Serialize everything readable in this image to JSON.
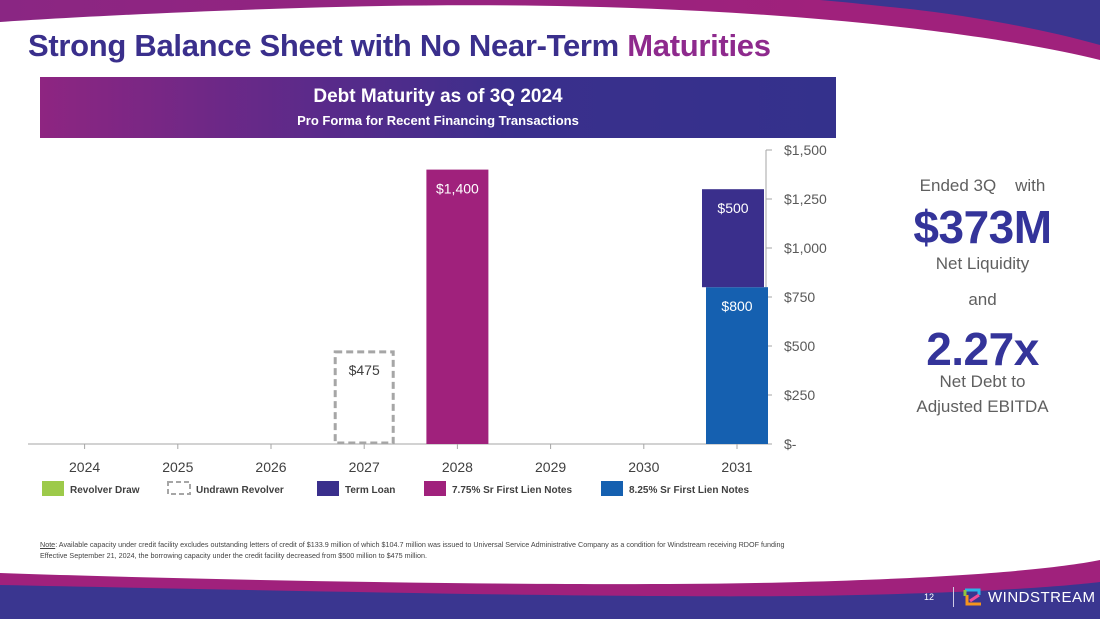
{
  "slide": {
    "title_main": "Strong Balance Sheet with No Near-Term ",
    "title_accent": "Maturities",
    "page_number": "12",
    "brand": "WINDSTREAM"
  },
  "banner": {
    "title": "Debt Maturity as of 3Q 2024",
    "subtitle": "Pro Forma for Recent Financing Transactions"
  },
  "kpis": {
    "line1": "Ended 3Q    with",
    "liquidity_value": "$373M",
    "liquidity_label": "Net Liquidity",
    "connector": "and",
    "leverage_value": "2.27x",
    "leverage_label_1": "Net Debt to",
    "leverage_label_2": "Adjusted EBITDA"
  },
  "note": {
    "label": "Note",
    "line1": ": Available capacity under credit facility excludes outstanding letters of credit of $133.9 million of which $104.7 million was issued to Universal Service Administrative Company as a condition for Windstream receiving RDOF funding",
    "line2": "Effective September 21, 2024, the borrowing capacity under the credit facility decreased from $500 million to $475 million."
  },
  "colors": {
    "purple": "#3a2f8c",
    "magenta": "#a0217c",
    "blue": "#1560b0",
    "green": "#9dca4a",
    "dashed": "#a6a6a6"
  },
  "chart_data": {
    "type": "bar",
    "stacked": true,
    "title": "Debt Maturity as of 3Q 2024",
    "subtitle": "Pro Forma for Recent Financing Transactions",
    "categories": [
      "2024",
      "2025",
      "2026",
      "2027",
      "2028",
      "2029",
      "2030",
      "2031"
    ],
    "ylabel": "",
    "xlabel": "",
    "ylim": [
      0,
      1500
    ],
    "yticks": [
      0,
      250,
      500,
      750,
      1000,
      1250,
      1500
    ],
    "ytick_labels": [
      "$-",
      "$250",
      "$500",
      "$750",
      "$1,000",
      "$1,250",
      "$1,500"
    ],
    "y_axis_position": "right",
    "grid": false,
    "legend_position": "bottom",
    "series": [
      {
        "name": "Revolver Draw",
        "color": "#9dca4a",
        "style": "solid",
        "values": [
          0,
          0,
          0,
          0,
          0,
          0,
          0,
          0
        ],
        "labels": [
          "",
          "",
          "",
          "",
          "",
          "",
          "",
          ""
        ]
      },
      {
        "name": "Undrawn Revolver",
        "color": "#a6a6a6",
        "style": "dashed",
        "values": [
          0,
          0,
          0,
          475,
          0,
          0,
          0,
          0
        ],
        "labels": [
          "",
          "",
          "",
          "$475",
          "",
          "",
          "",
          ""
        ]
      },
      {
        "name": "Term Loan",
        "color": "#3a2f8c",
        "style": "solid",
        "values": [
          0,
          0,
          0,
          0,
          0,
          0,
          0,
          500
        ],
        "labels": [
          "",
          "",
          "",
          "",
          "",
          "",
          "",
          "$500"
        ]
      },
      {
        "name": "7.75% Sr First Lien Notes",
        "color": "#a0217c",
        "style": "solid",
        "values": [
          0,
          0,
          0,
          0,
          1400,
          0,
          0,
          0
        ],
        "labels": [
          "",
          "",
          "",
          "",
          "$1,400",
          "",
          "",
          ""
        ]
      },
      {
        "name": "8.25% Sr First Lien Notes",
        "color": "#1560b0",
        "style": "solid",
        "values": [
          0,
          0,
          0,
          0,
          0,
          0,
          0,
          800
        ],
        "labels": [
          "",
          "",
          "",
          "",
          "",
          "",
          "",
          "$800"
        ]
      }
    ]
  }
}
